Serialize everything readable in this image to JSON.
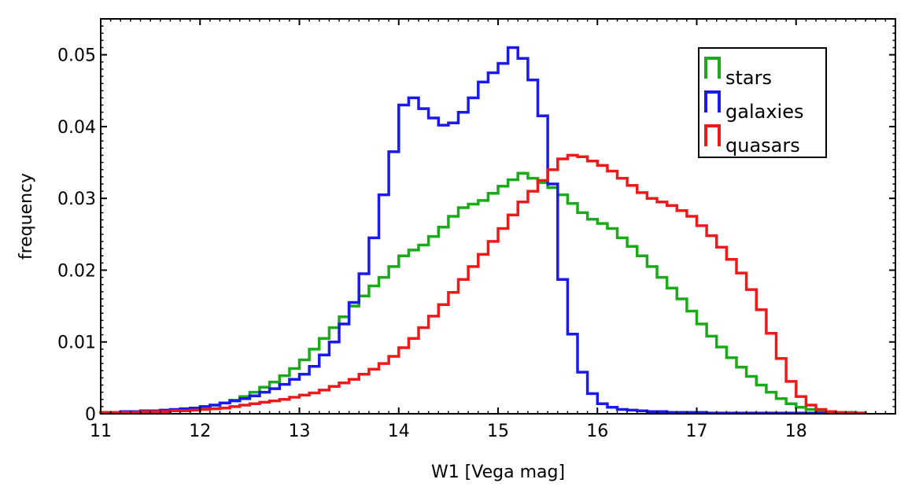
{
  "chart_data": {
    "type": "histogram",
    "title": "",
    "xlabel": "W1 [Vega mag]",
    "ylabel": "frequency",
    "xlim": [
      11,
      19
    ],
    "ylim": [
      0,
      0.055
    ],
    "x_ticks": [
      {
        "value": 11,
        "label": "11"
      },
      {
        "value": 12,
        "label": "12"
      },
      {
        "value": 13,
        "label": "13"
      },
      {
        "value": 14,
        "label": "14"
      },
      {
        "value": 15,
        "label": "15"
      },
      {
        "value": 16,
        "label": "16"
      },
      {
        "value": 17,
        "label": "17"
      },
      {
        "value": 18,
        "label": "18"
      }
    ],
    "y_ticks": [
      {
        "value": 0,
        "label": "0"
      },
      {
        "value": 0.01,
        "label": "0.01"
      },
      {
        "value": 0.02,
        "label": "0.02"
      },
      {
        "value": 0.03,
        "label": "0.03"
      },
      {
        "value": 0.04,
        "label": "0.04"
      },
      {
        "value": 0.05,
        "label": "0.05"
      }
    ],
    "legend_position": "top-right",
    "grid": false,
    "bin_edges": [
      11.0,
      11.1,
      11.2,
      11.3,
      11.4,
      11.5,
      11.6,
      11.7,
      11.8,
      11.9,
      12.0,
      12.1,
      12.2,
      12.3,
      12.4,
      12.5,
      12.6,
      12.7,
      12.8,
      12.9,
      13.0,
      13.1,
      13.2,
      13.3,
      13.4,
      13.5,
      13.6,
      13.7,
      13.8,
      13.9,
      14.0,
      14.1,
      14.2,
      14.3,
      14.4,
      14.5,
      14.6,
      14.7,
      14.8,
      14.9,
      15.0,
      15.1,
      15.2,
      15.3,
      15.4,
      15.5,
      15.6,
      15.7,
      15.8,
      15.9,
      16.0,
      16.1,
      16.2,
      16.3,
      16.4,
      16.5,
      16.6,
      16.7,
      16.8,
      16.9,
      17.0,
      17.1,
      17.2,
      17.3,
      17.4,
      17.5,
      17.6,
      17.7,
      17.8,
      17.9,
      18.0,
      18.1,
      18.2,
      18.3,
      18.4,
      18.5,
      18.6,
      18.7
    ],
    "series": [
      {
        "name": "stars",
        "color": "#1aaa1a",
        "values": [
          0.0002,
          0.0002,
          0.0002,
          0.0003,
          0.0003,
          0.0003,
          0.0004,
          0.0005,
          0.0006,
          0.0008,
          0.001,
          0.0012,
          0.0015,
          0.0019,
          0.0024,
          0.003,
          0.0037,
          0.0044,
          0.0053,
          0.0063,
          0.0075,
          0.009,
          0.0105,
          0.012,
          0.0135,
          0.015,
          0.0164,
          0.0178,
          0.019,
          0.0205,
          0.022,
          0.0228,
          0.0235,
          0.0247,
          0.026,
          0.0275,
          0.0287,
          0.0292,
          0.0297,
          0.0307,
          0.0317,
          0.0326,
          0.0335,
          0.0328,
          0.0322,
          0.0315,
          0.0305,
          0.0293,
          0.028,
          0.0271,
          0.0265,
          0.0258,
          0.0245,
          0.0233,
          0.022,
          0.0205,
          0.019,
          0.0175,
          0.016,
          0.0143,
          0.0125,
          0.0108,
          0.0093,
          0.0078,
          0.0065,
          0.0052,
          0.004,
          0.003,
          0.0021,
          0.0014,
          0.0009,
          0.0006,
          0.0004,
          0.0003,
          0.0002,
          0.0002,
          0.0001
        ]
      },
      {
        "name": "galaxies",
        "color": "#1a1af0",
        "values": [
          0.0002,
          0.0002,
          0.0003,
          0.0003,
          0.0004,
          0.0004,
          0.0005,
          0.0006,
          0.0007,
          0.0008,
          0.001,
          0.0012,
          0.0015,
          0.0018,
          0.0021,
          0.0025,
          0.003,
          0.0035,
          0.0041,
          0.0048,
          0.0055,
          0.0066,
          0.0082,
          0.01,
          0.0125,
          0.0155,
          0.0195,
          0.0245,
          0.0305,
          0.0365,
          0.043,
          0.044,
          0.0425,
          0.0412,
          0.0402,
          0.0405,
          0.042,
          0.044,
          0.0462,
          0.0475,
          0.0488,
          0.051,
          0.0495,
          0.0465,
          0.0415,
          0.032,
          0.0187,
          0.0111,
          0.0058,
          0.0028,
          0.0014,
          0.0009,
          0.0006,
          0.0005,
          0.0004,
          0.0003,
          0.0003,
          0.0002,
          0.0002,
          0.0002,
          0.0002,
          0.0001,
          0.0001,
          0.0001,
          0.0001,
          0.0001,
          0.0001,
          0.0001,
          0.0001,
          0.0001,
          0.0001,
          0.0001,
          0.0001,
          0.0001,
          0.0001,
          0.0001,
          0.0001
        ]
      },
      {
        "name": "quasars",
        "color": "#ee1a1a",
        "values": [
          0.0002,
          0.0002,
          0.0002,
          0.0002,
          0.0003,
          0.0003,
          0.0003,
          0.0004,
          0.0004,
          0.0005,
          0.0006,
          0.0007,
          0.0008,
          0.001,
          0.0012,
          0.0014,
          0.0016,
          0.0018,
          0.002,
          0.0023,
          0.0026,
          0.0029,
          0.0033,
          0.0038,
          0.0043,
          0.0048,
          0.0055,
          0.0062,
          0.007,
          0.008,
          0.0092,
          0.0105,
          0.012,
          0.0136,
          0.0152,
          0.0169,
          0.0187,
          0.0205,
          0.0222,
          0.024,
          0.0258,
          0.0277,
          0.0295,
          0.031,
          0.0325,
          0.034,
          0.0355,
          0.036,
          0.0358,
          0.0352,
          0.0346,
          0.0338,
          0.0328,
          0.0318,
          0.0308,
          0.03,
          0.0295,
          0.029,
          0.0283,
          0.0275,
          0.0262,
          0.0248,
          0.0232,
          0.0215,
          0.0196,
          0.0173,
          0.0145,
          0.0112,
          0.0077,
          0.0045,
          0.0024,
          0.0012,
          0.0006,
          0.0003,
          0.0002,
          0.0001,
          0.0001
        ]
      }
    ]
  }
}
